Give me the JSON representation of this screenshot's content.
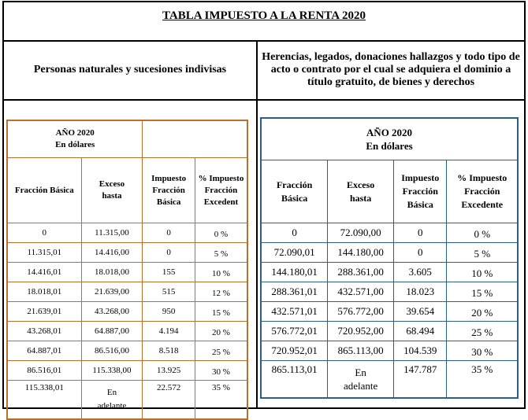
{
  "title": "TABLA IMPUESTO A LA RENTA 2020",
  "left_heading": "Personas naturales y sucesiones indivisas",
  "right_heading": "Herencias, legados, donaciones hallazgos y todo tipo de acto o contrato por el cual se adquiera el dominio a título gratuito, de bienes y derechos",
  "left_table": {
    "year_line1": "AÑO 2020",
    "year_line2": "En dólares",
    "columns": [
      "Fracción Básica",
      "Exceso hasta",
      "Impuesto Fracción Básica",
      "% Impuesto Fracción Excedent"
    ],
    "rows": [
      [
        "0",
        "11.315,00",
        "0",
        "0 %"
      ],
      [
        "11.315,01",
        "14.416,00",
        "0",
        "5 %"
      ],
      [
        "14.416,01",
        "18.018,00",
        "155",
        "10 %"
      ],
      [
        "18.018,01",
        "21.639,00",
        "515",
        "12 %"
      ],
      [
        "21.639,01",
        "43.268,00",
        "950",
        "15 %"
      ],
      [
        "43.268,01",
        "64.887,00",
        "4.194",
        "20 %"
      ],
      [
        "64.887,01",
        "86.516,00",
        "8.518",
        "25 %"
      ],
      [
        "86.516,01",
        "115.338,00",
        "13.925",
        "30 %"
      ],
      [
        "115.338,01",
        "En adelante",
        "22.572",
        "35 %"
      ]
    ]
  },
  "right_table": {
    "year_line1": "AÑO 2020",
    "year_line2": "En dólares",
    "columns": [
      "Fracción Básica",
      "Exceso hasta",
      "Impuesto Fracción Básica",
      "% Impuesto Fracción Excedente"
    ],
    "rows": [
      [
        "0",
        "72.090,00",
        "0",
        "0 %"
      ],
      [
        "72.090,01",
        "144.180,00",
        "0",
        "5 %"
      ],
      [
        "144.180,01",
        "288.361,00",
        "3.605",
        "10 %"
      ],
      [
        "288.361,01",
        "432.571,00",
        "18.023",
        "15 %"
      ],
      [
        "432.571,01",
        "576.772,00",
        "39.654",
        "20 %"
      ],
      [
        "576.772,01",
        "720.952,00",
        "68.494",
        "25 %"
      ],
      [
        "720.952,01",
        "865.113,00",
        "104.539",
        "30 %"
      ],
      [
        "865.113,01",
        "En adelante",
        "147.787",
        "35 %"
      ]
    ]
  },
  "colors": {
    "left_border": "#b8702f",
    "right_border": "#2a5f8a"
  }
}
